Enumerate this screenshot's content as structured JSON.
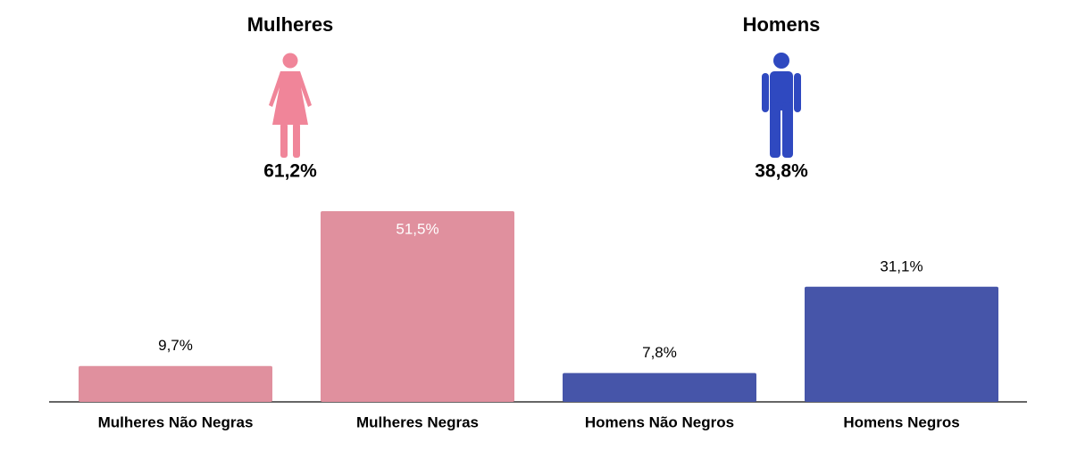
{
  "groups": [
    {
      "title": "Mulheres",
      "share": "61,2%"
    },
    {
      "title": "Homens",
      "share": "38,8%"
    }
  ],
  "chart_data": {
    "type": "bar",
    "categories": [
      "Mulheres Não Negras",
      "Mulheres Negras",
      "Homens Não Negros",
      "Homens Negros"
    ],
    "values": [
      9.7,
      51.5,
      7.8,
      31.1
    ],
    "value_labels": [
      "9,7%",
      "51,5%",
      "7,8%",
      "31,1%"
    ],
    "colors": [
      "#e0909e",
      "#e0909e",
      "#4655a9",
      "#4655a9"
    ]
  }
}
